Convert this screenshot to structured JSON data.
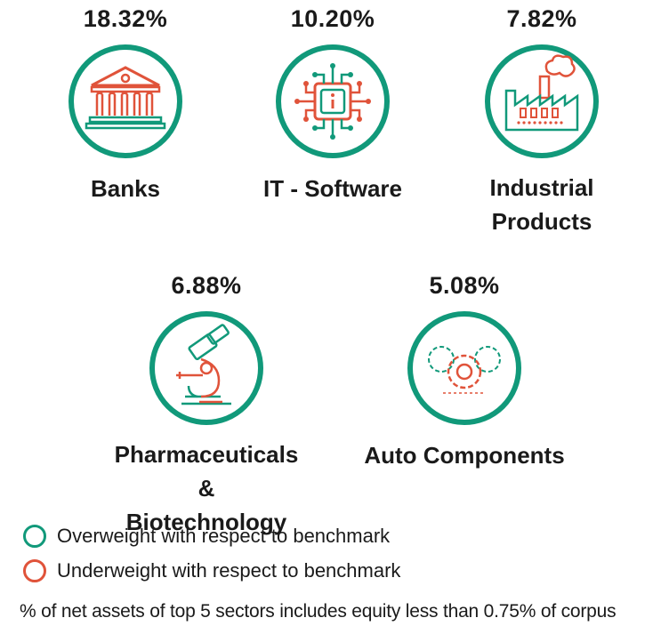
{
  "colors": {
    "overweight": "#11997a",
    "underweight": "#e0533a",
    "text": "#1a1a1a"
  },
  "sectors": [
    {
      "pct": "18.32%",
      "name_lines": [
        "Banks"
      ],
      "icon": "bank-building-icon",
      "weight": "overweight"
    },
    {
      "pct": "10.20%",
      "name_lines": [
        "IT - Software"
      ],
      "icon": "chip-info-icon",
      "weight": "overweight"
    },
    {
      "pct": "7.82%",
      "name_lines": [
        "Industrial",
        "Products"
      ],
      "icon": "factory-icon",
      "weight": "overweight"
    },
    {
      "pct": "6.88%",
      "name_lines": [
        "Pharmaceuticals &",
        "Biotechnology"
      ],
      "icon": "microscope-icon",
      "weight": "overweight"
    },
    {
      "pct": "5.08%",
      "name_lines": [
        "Auto Components"
      ],
      "icon": "gears-icon",
      "weight": "overweight"
    }
  ],
  "legend": {
    "overweight": "Overweight with respect to benchmark",
    "underweight": "Underweight with respect to benchmark"
  },
  "note": "% of net assets of top 5 sectors includes equity less than 0.75% of corpus"
}
